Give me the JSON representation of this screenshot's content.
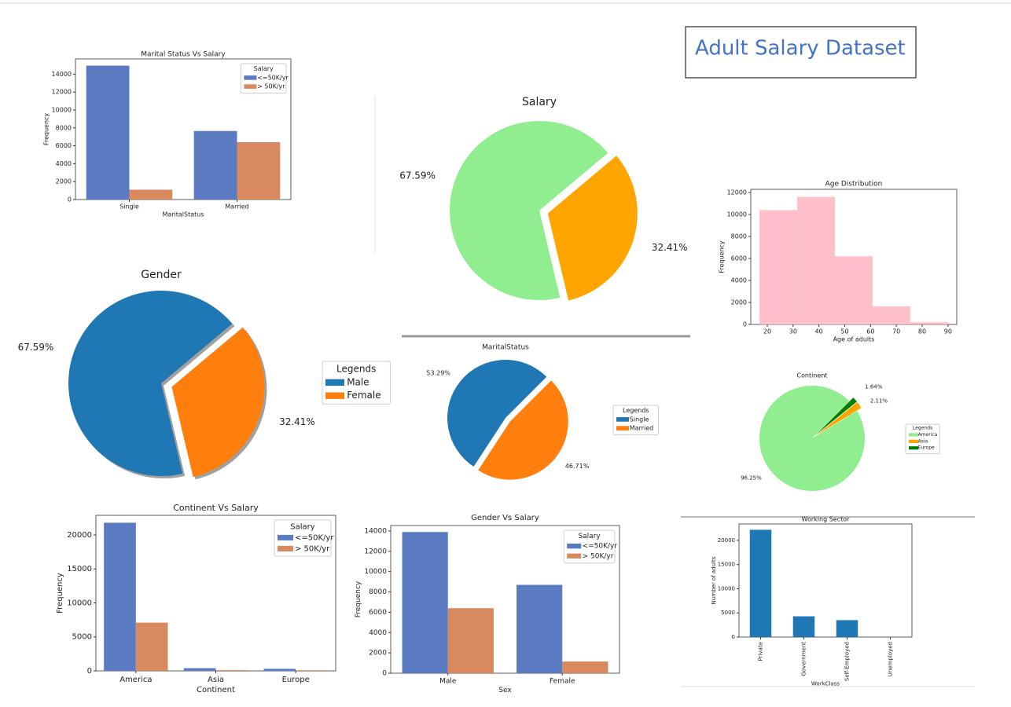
{
  "header": {
    "title": "Adult Salary Dataset"
  },
  "chart_data": [
    {
      "type": "bar",
      "title": "Marital Status Vs Salary",
      "categories": [
        "Single",
        "Married"
      ],
      "xlabel": "MaritalStatus",
      "ylabel": "Frequency",
      "legend_title": "Salary",
      "legend": "upper right",
      "series": [
        {
          "name": "<=50K/yr",
          "color": "#5a7bc1",
          "values": [
            14950,
            7650
          ]
        },
        {
          "name": "> 50K/yr",
          "color": "#d8895d",
          "values": [
            1100,
            6400
          ]
        }
      ],
      "ylim": [
        0,
        15700
      ],
      "yticks": [
        0,
        2000,
        4000,
        6000,
        8000,
        10000,
        12000,
        14000
      ]
    },
    {
      "type": "pie",
      "title": "Salary",
      "values": [
        67.59,
        32.41
      ],
      "value_labels": [
        "67.59%",
        "32.41%"
      ],
      "colors": [
        "#90ee90",
        "#ffa500"
      ]
    },
    {
      "type": "histogram",
      "title": "Age Distribution",
      "xlabel": "Age of adults",
      "ylabel": "Frequency",
      "color": "#ffc0cb",
      "bins": [
        17,
        31.6,
        46.2,
        60.8,
        75.4,
        90
      ],
      "values": [
        10400,
        11600,
        6200,
        1650,
        200
      ],
      "xlim": [
        13.6,
        93.4
      ],
      "xticks": [
        20,
        30,
        40,
        50,
        60,
        70,
        80,
        90
      ],
      "ylim": [
        0,
        12290
      ],
      "yticks": [
        0,
        2000,
        4000,
        6000,
        8000,
        10000,
        12000
      ]
    },
    {
      "type": "pie",
      "title": "Gender",
      "categories": [
        "Male",
        "Female"
      ],
      "values": [
        67.59,
        32.41
      ],
      "value_labels": [
        "67.59%",
        "32.41%"
      ],
      "colors": [
        "#1f77b4",
        "#ff7f0e"
      ],
      "legend_title": "Legends"
    },
    {
      "type": "pie",
      "title": "MaritalStatus",
      "categories": [
        "Single",
        "Married"
      ],
      "values": [
        53.29,
        46.71
      ],
      "value_labels": [
        "53.29%",
        "46.71%"
      ],
      "colors": [
        "#1f77b4",
        "#ff7f0e"
      ],
      "legend_title": "Legends"
    },
    {
      "type": "pie",
      "title": "Continent",
      "categories": [
        "America",
        "Asia",
        "Europe"
      ],
      "values": [
        96.25,
        2.11,
        1.64
      ],
      "value_labels": [
        "96.25%",
        "2.11%",
        "1.64%"
      ],
      "colors": [
        "#90ee90",
        "#ffa500",
        "#008000"
      ],
      "legend_title": "Legends"
    },
    {
      "type": "bar",
      "title": "Continent Vs Salary",
      "categories": [
        "America",
        "Asia",
        "Europe"
      ],
      "xlabel": "Continent",
      "ylabel": "Frequency",
      "legend_title": "Salary",
      "legend": "upper right",
      "series": [
        {
          "name": "<=50K/yr",
          "color": "#5a7bc1",
          "values": [
            21800,
            400,
            300
          ]
        },
        {
          "name": "> 50K/yr",
          "color": "#d8895d",
          "values": [
            7100,
            120,
            100
          ]
        }
      ],
      "ylim": [
        0,
        22890
      ],
      "yticks": [
        0,
        5000,
        10000,
        15000,
        20000
      ]
    },
    {
      "type": "bar",
      "title": "Gender Vs Salary",
      "categories": [
        "Male",
        "Female"
      ],
      "xlabel": "Sex",
      "ylabel": "Frequency",
      "legend_title": "Salary",
      "legend": "upper right",
      "series": [
        {
          "name": "<=50K/yr",
          "color": "#5a7bc1",
          "values": [
            13900,
            8700
          ]
        },
        {
          "name": "> 50K/yr",
          "color": "#d8895d",
          "values": [
            6400,
            1150
          ]
        }
      ],
      "ylim": [
        0,
        14540
      ],
      "yticks": [
        0,
        2000,
        4000,
        6000,
        8000,
        10000,
        12000,
        14000
      ]
    },
    {
      "type": "bar",
      "title": "Working Sector",
      "categories": [
        "Private",
        "Government",
        "Self-Employed",
        "Unemployed"
      ],
      "xlabel": "WorkClass",
      "ylabel": "Number of adults",
      "color": "#1f77b4",
      "values": [
        22200,
        4300,
        3500,
        10
      ],
      "ylim": [
        0,
        23400
      ],
      "yticks": [
        0,
        5000,
        10000,
        15000,
        20000
      ]
    }
  ]
}
